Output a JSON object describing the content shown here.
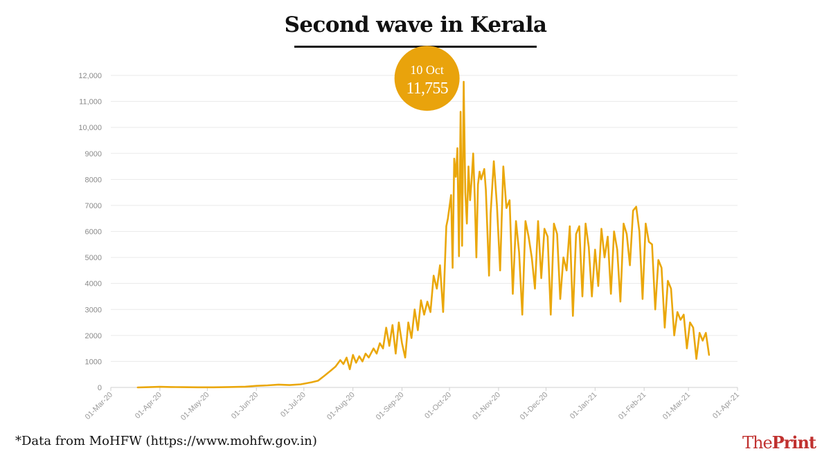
{
  "title": "Second wave in Kerala",
  "source_note": "*Data from MoHFW (https://www.mohfw.gov.in)",
  "brand": {
    "the": "The",
    "print": "Print"
  },
  "peak": {
    "date": "10 Oct",
    "value": "11,755",
    "x": "2020-10-10",
    "y": 11755
  },
  "colors": {
    "line": "#eaa70b",
    "bubble": "#e9a30c",
    "grid": "#eaeaea",
    "brand": "#c0312f"
  },
  "chart_data": {
    "type": "line",
    "title": "Second wave in Kerala",
    "xlabel": "",
    "ylabel": "",
    "x_range": [
      "2020-03-01",
      "2021-04-01"
    ],
    "ylim": [
      0,
      12000
    ],
    "grid": true,
    "legend": "none",
    "y_ticks": [
      {
        "value": 0,
        "label": "0"
      },
      {
        "value": 1000,
        "label": "1000"
      },
      {
        "value": 2000,
        "label": "2000"
      },
      {
        "value": 3000,
        "label": "3000"
      },
      {
        "value": 4000,
        "label": "4000"
      },
      {
        "value": 5000,
        "label": "5000"
      },
      {
        "value": 6000,
        "label": "6000"
      },
      {
        "value": 7000,
        "label": "7000"
      },
      {
        "value": 8000,
        "label": "8000"
      },
      {
        "value": 9000,
        "label": "9000"
      },
      {
        "value": 10000,
        "label": "10,000"
      },
      {
        "value": 11000,
        "label": "11,000"
      },
      {
        "value": 12000,
        "label": "12,000"
      }
    ],
    "x_ticks": [
      {
        "date": "2020-03-01",
        "label": "01-Mar-20"
      },
      {
        "date": "2020-04-01",
        "label": "01-Apr-20"
      },
      {
        "date": "2020-05-01",
        "label": "01-May-20"
      },
      {
        "date": "2020-06-01",
        "label": "01-Jun-20"
      },
      {
        "date": "2020-07-01",
        "label": "01-Jul-20"
      },
      {
        "date": "2020-08-01",
        "label": "01-Aug-20"
      },
      {
        "date": "2020-09-01",
        "label": "01-Sep-20"
      },
      {
        "date": "2020-10-01",
        "label": "01-Oct-20"
      },
      {
        "date": "2020-11-01",
        "label": "01-Nov-20"
      },
      {
        "date": "2020-12-01",
        "label": "01-Dec-20"
      },
      {
        "date": "2021-01-01",
        "label": "01-Jan-21"
      },
      {
        "date": "2021-02-01",
        "label": "01-Feb-21"
      },
      {
        "date": "2021-03-01",
        "label": "01-Mar-21"
      },
      {
        "date": "2021-04-01",
        "label": "01-Apr-21"
      }
    ],
    "series": [
      {
        "values": [
          [
            "2020-03-18",
            0
          ],
          [
            "2020-03-25",
            10
          ],
          [
            "2020-04-01",
            25
          ],
          [
            "2020-04-08",
            15
          ],
          [
            "2020-04-15",
            10
          ],
          [
            "2020-04-25",
            5
          ],
          [
            "2020-05-05",
            5
          ],
          [
            "2020-05-15",
            15
          ],
          [
            "2020-05-25",
            30
          ],
          [
            "2020-06-01",
            60
          ],
          [
            "2020-06-08",
            80
          ],
          [
            "2020-06-15",
            110
          ],
          [
            "2020-06-22",
            90
          ],
          [
            "2020-06-29",
            120
          ],
          [
            "2020-07-06",
            200
          ],
          [
            "2020-07-10",
            260
          ],
          [
            "2020-07-14",
            450
          ],
          [
            "2020-07-18",
            650
          ],
          [
            "2020-07-21",
            800
          ],
          [
            "2020-07-24",
            1050
          ],
          [
            "2020-07-26",
            900
          ],
          [
            "2020-07-28",
            1150
          ],
          [
            "2020-07-30",
            700
          ],
          [
            "2020-08-01",
            1250
          ],
          [
            "2020-08-03",
            950
          ],
          [
            "2020-08-05",
            1200
          ],
          [
            "2020-08-07",
            1000
          ],
          [
            "2020-08-09",
            1300
          ],
          [
            "2020-08-11",
            1150
          ],
          [
            "2020-08-14",
            1500
          ],
          [
            "2020-08-16",
            1300
          ],
          [
            "2020-08-18",
            1700
          ],
          [
            "2020-08-20",
            1500
          ],
          [
            "2020-08-22",
            2300
          ],
          [
            "2020-08-24",
            1600
          ],
          [
            "2020-08-26",
            2400
          ],
          [
            "2020-08-28",
            1300
          ],
          [
            "2020-08-30",
            2500
          ],
          [
            "2020-09-01",
            1700
          ],
          [
            "2020-09-03",
            1150
          ],
          [
            "2020-09-05",
            2500
          ],
          [
            "2020-09-07",
            1900
          ],
          [
            "2020-09-09",
            3000
          ],
          [
            "2020-09-11",
            2200
          ],
          [
            "2020-09-13",
            3350
          ],
          [
            "2020-09-15",
            2800
          ],
          [
            "2020-09-17",
            3300
          ],
          [
            "2020-09-19",
            2900
          ],
          [
            "2020-09-21",
            4300
          ],
          [
            "2020-09-23",
            3800
          ],
          [
            "2020-09-25",
            4700
          ],
          [
            "2020-09-27",
            2900
          ],
          [
            "2020-09-29",
            6200
          ],
          [
            "2020-09-30",
            6500
          ],
          [
            "2020-10-02",
            7400
          ],
          [
            "2020-10-03",
            4600
          ],
          [
            "2020-10-04",
            8800
          ],
          [
            "2020-10-05",
            8100
          ],
          [
            "2020-10-06",
            9200
          ],
          [
            "2020-10-07",
            5050
          ],
          [
            "2020-10-08",
            10600
          ],
          [
            "2020-10-09",
            5450
          ],
          [
            "2020-10-10",
            11755
          ],
          [
            "2020-10-11",
            7500
          ],
          [
            "2020-10-12",
            6300
          ],
          [
            "2020-10-13",
            8500
          ],
          [
            "2020-10-14",
            7200
          ],
          [
            "2020-10-15",
            8000
          ],
          [
            "2020-10-16",
            9000
          ],
          [
            "2020-10-17",
            7300
          ],
          [
            "2020-10-18",
            5000
          ],
          [
            "2020-10-19",
            7800
          ],
          [
            "2020-10-20",
            8300
          ],
          [
            "2020-10-21",
            8000
          ],
          [
            "2020-10-23",
            8400
          ],
          [
            "2020-10-24",
            7600
          ],
          [
            "2020-10-26",
            4300
          ],
          [
            "2020-10-27",
            6700
          ],
          [
            "2020-10-29",
            8700
          ],
          [
            "2020-10-31",
            7000
          ],
          [
            "2020-11-02",
            4500
          ],
          [
            "2020-11-04",
            8500
          ],
          [
            "2020-11-06",
            6900
          ],
          [
            "2020-11-08",
            7200
          ],
          [
            "2020-11-10",
            3600
          ],
          [
            "2020-11-12",
            6400
          ],
          [
            "2020-11-14",
            5200
          ],
          [
            "2020-11-16",
            2800
          ],
          [
            "2020-11-18",
            6400
          ],
          [
            "2020-11-20",
            5800
          ],
          [
            "2020-11-22",
            5000
          ],
          [
            "2020-11-24",
            3800
          ],
          [
            "2020-11-26",
            6400
          ],
          [
            "2020-11-28",
            4200
          ],
          [
            "2020-11-30",
            6100
          ],
          [
            "2020-12-02",
            5800
          ],
          [
            "2020-12-04",
            2800
          ],
          [
            "2020-12-06",
            6300
          ],
          [
            "2020-12-08",
            5900
          ],
          [
            "2020-12-10",
            3400
          ],
          [
            "2020-12-12",
            5000
          ],
          [
            "2020-12-14",
            4500
          ],
          [
            "2020-12-16",
            6200
          ],
          [
            "2020-12-18",
            2750
          ],
          [
            "2020-12-20",
            5900
          ],
          [
            "2020-12-22",
            6200
          ],
          [
            "2020-12-24",
            3500
          ],
          [
            "2020-12-26",
            6300
          ],
          [
            "2020-12-28",
            5400
          ],
          [
            "2020-12-30",
            3500
          ],
          [
            "2021-01-01",
            5300
          ],
          [
            "2021-01-03",
            3900
          ],
          [
            "2021-01-05",
            6100
          ],
          [
            "2021-01-07",
            5000
          ],
          [
            "2021-01-09",
            5800
          ],
          [
            "2021-01-11",
            3600
          ],
          [
            "2021-01-13",
            6000
          ],
          [
            "2021-01-15",
            5300
          ],
          [
            "2021-01-17",
            3300
          ],
          [
            "2021-01-19",
            6300
          ],
          [
            "2021-01-21",
            5900
          ],
          [
            "2021-01-23",
            4700
          ],
          [
            "2021-01-25",
            6800
          ],
          [
            "2021-01-27",
            6950
          ],
          [
            "2021-01-29",
            6000
          ],
          [
            "2021-01-31",
            3400
          ],
          [
            "2021-02-02",
            6300
          ],
          [
            "2021-02-04",
            5600
          ],
          [
            "2021-02-06",
            5500
          ],
          [
            "2021-02-08",
            3000
          ],
          [
            "2021-02-10",
            4900
          ],
          [
            "2021-02-12",
            4600
          ],
          [
            "2021-02-14",
            2300
          ],
          [
            "2021-02-16",
            4100
          ],
          [
            "2021-02-18",
            3800
          ],
          [
            "2021-02-20",
            2000
          ],
          [
            "2021-02-22",
            2900
          ],
          [
            "2021-02-24",
            2600
          ],
          [
            "2021-02-26",
            2800
          ],
          [
            "2021-02-28",
            1500
          ],
          [
            "2021-03-02",
            2500
          ],
          [
            "2021-03-04",
            2300
          ],
          [
            "2021-03-06",
            1100
          ],
          [
            "2021-03-08",
            2100
          ],
          [
            "2021-03-10",
            1800
          ],
          [
            "2021-03-12",
            2100
          ],
          [
            "2021-03-14",
            1250
          ]
        ]
      }
    ]
  }
}
